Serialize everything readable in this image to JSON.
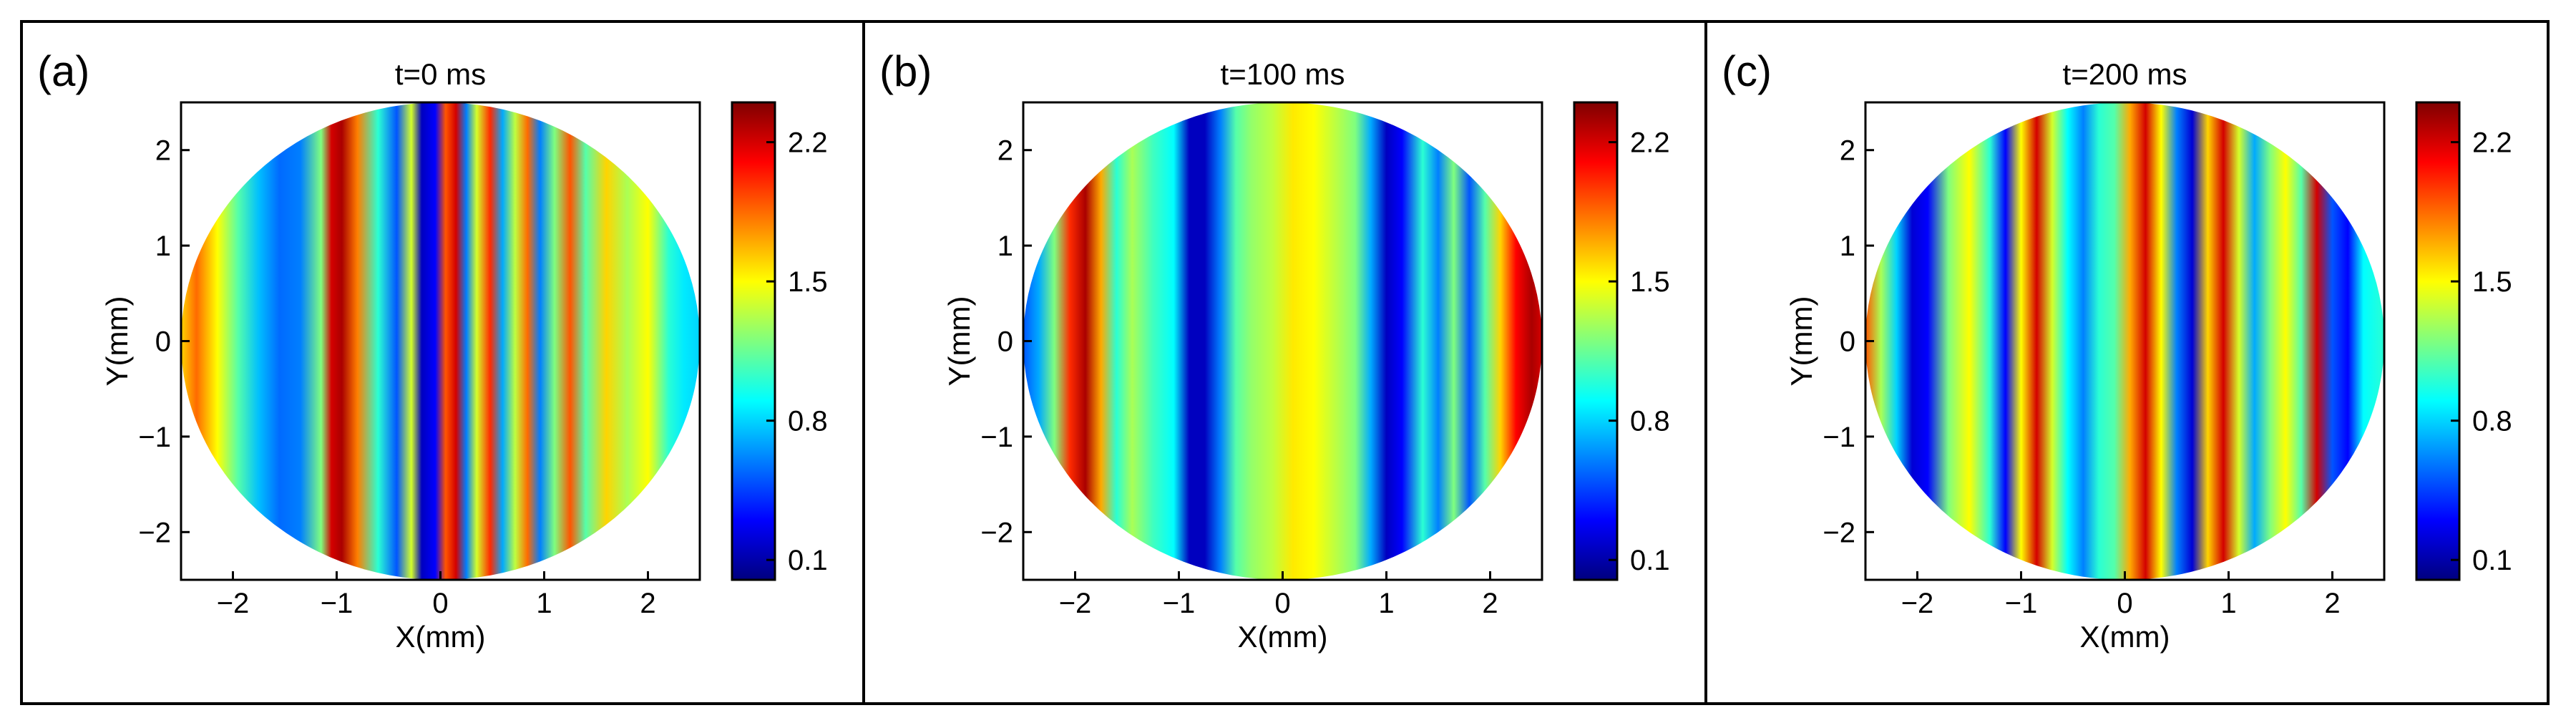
{
  "colormap": {
    "name": "jet",
    "stops": [
      "#00007F",
      "#0000FF",
      "#007FFF",
      "#00FFFF",
      "#7FFF7F",
      "#FFFF00",
      "#FF7F00",
      "#FF0000",
      "#7F0000"
    ]
  },
  "chart_data": [
    {
      "type": "heatmap",
      "panel_label": "(a)",
      "title": "t=0 ms",
      "xlabel": "X(mm)",
      "ylabel": "Y(mm)",
      "xlim": [
        -2.5,
        2.5
      ],
      "ylim": [
        -2.5,
        2.5
      ],
      "x_ticks": [
        -2,
        -1,
        0,
        1,
        2
      ],
      "y_ticks": [
        2,
        1,
        0,
        -1,
        -2
      ],
      "x_tick_labels": [
        "−2",
        "−1",
        "0",
        "1",
        "2"
      ],
      "y_tick_labels": [
        "2",
        "1",
        "0",
        "−1",
        "−2"
      ],
      "aperture": {
        "shape": "circle",
        "center": [
          0,
          0
        ],
        "radius_mm": 2.5
      },
      "colorbar": {
        "min": 0.0,
        "max": 2.4,
        "ticks": [
          0.1,
          0.8,
          1.5,
          2.2
        ],
        "tick_labels": [
          "0.1",
          "0.8",
          "1.5",
          "2.2"
        ]
      },
      "intensity_profile_x": [
        -2.5,
        -2.35,
        -2.15,
        -1.95,
        -1.75,
        -1.55,
        -1.35,
        -1.15,
        -1.05,
        -0.95,
        -0.8,
        -0.6,
        -0.42,
        -0.28,
        -0.18,
        -0.05,
        0.05,
        0.15,
        0.25,
        0.35,
        0.48,
        0.6,
        0.72,
        0.84,
        0.96,
        1.1,
        1.25,
        1.4,
        1.6,
        1.8,
        2.0,
        2.2,
        2.35,
        2.5
      ],
      "intensity_profile_value": [
        1.6,
        1.85,
        1.5,
        1.1,
        0.75,
        0.55,
        0.6,
        1.2,
        2.2,
        2.3,
        1.8,
        1.0,
        0.5,
        1.4,
        0.15,
        0.3,
        1.9,
        2.2,
        0.6,
        1.4,
        2.0,
        0.7,
        1.35,
        1.85,
        0.6,
        1.2,
        1.9,
        1.1,
        1.6,
        1.3,
        1.5,
        1.0,
        0.85,
        0.8
      ]
    },
    {
      "type": "heatmap",
      "panel_label": "(b)",
      "title": "t=100 ms",
      "xlabel": "X(mm)",
      "ylabel": "Y(mm)",
      "xlim": [
        -2.5,
        2.5
      ],
      "ylim": [
        -2.5,
        2.5
      ],
      "x_ticks": [
        -2,
        -1,
        0,
        1,
        2
      ],
      "y_ticks": [
        2,
        1,
        0,
        -1,
        -2
      ],
      "x_tick_labels": [
        "−2",
        "−1",
        "0",
        "1",
        "2"
      ],
      "y_tick_labels": [
        "2",
        "1",
        "0",
        "−1",
        "−2"
      ],
      "aperture": {
        "shape": "circle",
        "center": [
          0,
          0
        ],
        "radius_mm": 2.5
      },
      "colorbar": {
        "min": 0.0,
        "max": 2.4,
        "ticks": [
          0.1,
          0.8,
          1.5,
          2.2
        ],
        "tick_labels": [
          "0.1",
          "0.8",
          "1.5",
          "2.2"
        ]
      },
      "intensity_profile_x": [
        -2.5,
        -2.35,
        -2.2,
        -2.05,
        -1.9,
        -1.75,
        -1.6,
        -1.45,
        -1.25,
        -1.05,
        -0.9,
        -0.75,
        -0.6,
        -0.45,
        -0.3,
        -0.1,
        0.1,
        0.3,
        0.5,
        0.7,
        0.85,
        1.0,
        1.15,
        1.35,
        1.5,
        1.65,
        1.8,
        1.95,
        2.1,
        2.25,
        2.4,
        2.5
      ],
      "intensity_profile_value": [
        0.5,
        0.7,
        1.2,
        2.0,
        2.3,
        1.7,
        1.0,
        1.3,
        1.05,
        0.9,
        0.15,
        0.15,
        0.6,
        1.1,
        1.25,
        1.35,
        1.55,
        1.5,
        1.35,
        1.2,
        0.7,
        0.15,
        0.3,
        1.0,
        0.6,
        1.2,
        0.5,
        1.1,
        1.6,
        2.1,
        2.3,
        2.2
      ]
    },
    {
      "type": "heatmap",
      "panel_label": "(c)",
      "title": "t=200 ms",
      "xlabel": "X(mm)",
      "ylabel": "Y(mm)",
      "xlim": [
        -2.5,
        2.5
      ],
      "ylim": [
        -2.5,
        2.5
      ],
      "x_ticks": [
        -2,
        -1,
        0,
        1,
        2
      ],
      "y_ticks": [
        2,
        1,
        0,
        -1,
        -2
      ],
      "x_tick_labels": [
        "−2",
        "−1",
        "0",
        "1",
        "2"
      ],
      "y_tick_labels": [
        "2",
        "1",
        "0",
        "−1",
        "−2"
      ],
      "aperture": {
        "shape": "circle",
        "center": [
          0,
          0
        ],
        "radius_mm": 2.5
      },
      "colorbar": {
        "min": 0.0,
        "max": 2.4,
        "ticks": [
          0.1,
          0.8,
          1.5,
          2.2
        ],
        "tick_labels": [
          "0.1",
          "0.8",
          "1.5",
          "2.2"
        ]
      },
      "intensity_profile_x": [
        -2.5,
        -2.35,
        -2.2,
        -2.05,
        -1.9,
        -1.7,
        -1.5,
        -1.3,
        -1.15,
        -1.0,
        -0.85,
        -0.7,
        -0.55,
        -0.4,
        -0.25,
        -0.1,
        0.05,
        0.2,
        0.35,
        0.5,
        0.65,
        0.8,
        0.95,
        1.1,
        1.25,
        1.4,
        1.55,
        1.7,
        1.85,
        2.0,
        2.15,
        2.3,
        2.5
      ],
      "intensity_profile_value": [
        1.9,
        1.3,
        0.8,
        0.2,
        0.3,
        1.2,
        1.5,
        1.0,
        0.3,
        1.5,
        2.2,
        1.4,
        0.9,
        0.6,
        1.0,
        1.1,
        1.7,
        2.2,
        1.5,
        0.6,
        0.2,
        1.6,
        2.2,
        1.4,
        0.7,
        1.2,
        1.5,
        1.1,
        2.2,
        0.5,
        0.3,
        0.9,
        1.0
      ]
    }
  ]
}
